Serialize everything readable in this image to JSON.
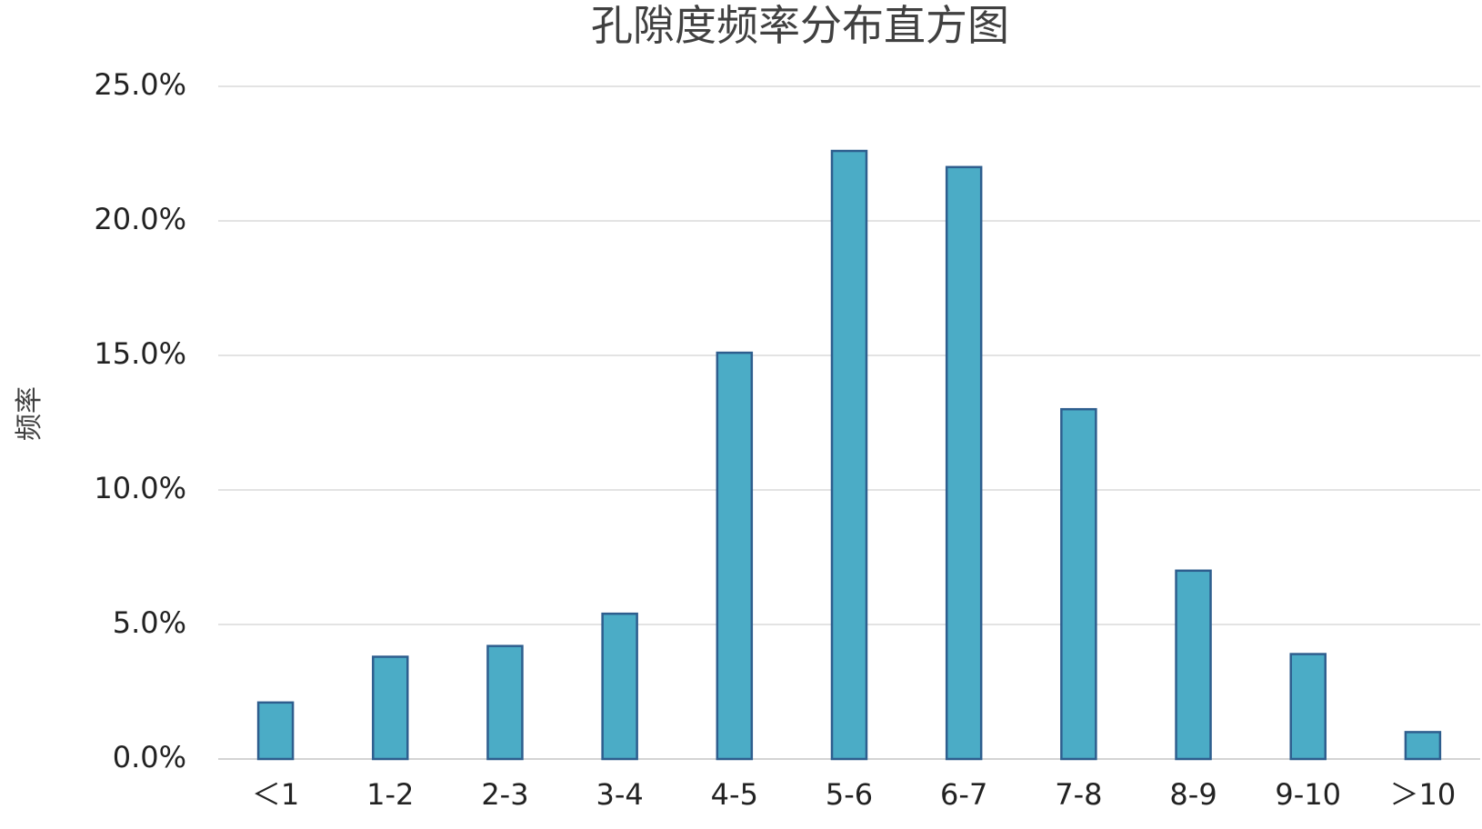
{
  "chart_data": {
    "type": "bar",
    "title": "孔隙度频率分布直方图",
    "xlabel": "",
    "ylabel": "频率",
    "categories": [
      "<1",
      "1-2",
      "2-3",
      "3-4",
      "4-5",
      "5-6",
      "6-7",
      "7-8",
      "8-9",
      "9-10",
      ">10"
    ],
    "category_labels": [
      "＜1",
      "1-2",
      "2-3",
      "3-4",
      "4-5",
      "5-6",
      "6-7",
      "7-8",
      "8-9",
      "9-10",
      "＞10"
    ],
    "values": [
      2.1,
      3.8,
      4.2,
      5.4,
      15.1,
      22.6,
      22.0,
      13.0,
      7.0,
      3.9,
      1.0
    ],
    "ylim": [
      0,
      25
    ],
    "yticks": [
      0,
      5,
      10,
      15,
      20,
      25
    ],
    "ytick_labels": [
      "0.0%",
      "5.0%",
      "10.0%",
      "15.0%",
      "20.0%",
      "25.0%"
    ],
    "grid": true,
    "legend": "none",
    "colors": {
      "bar_fill": "#4BACC6",
      "bar_stroke": "#2E5E8E"
    }
  }
}
